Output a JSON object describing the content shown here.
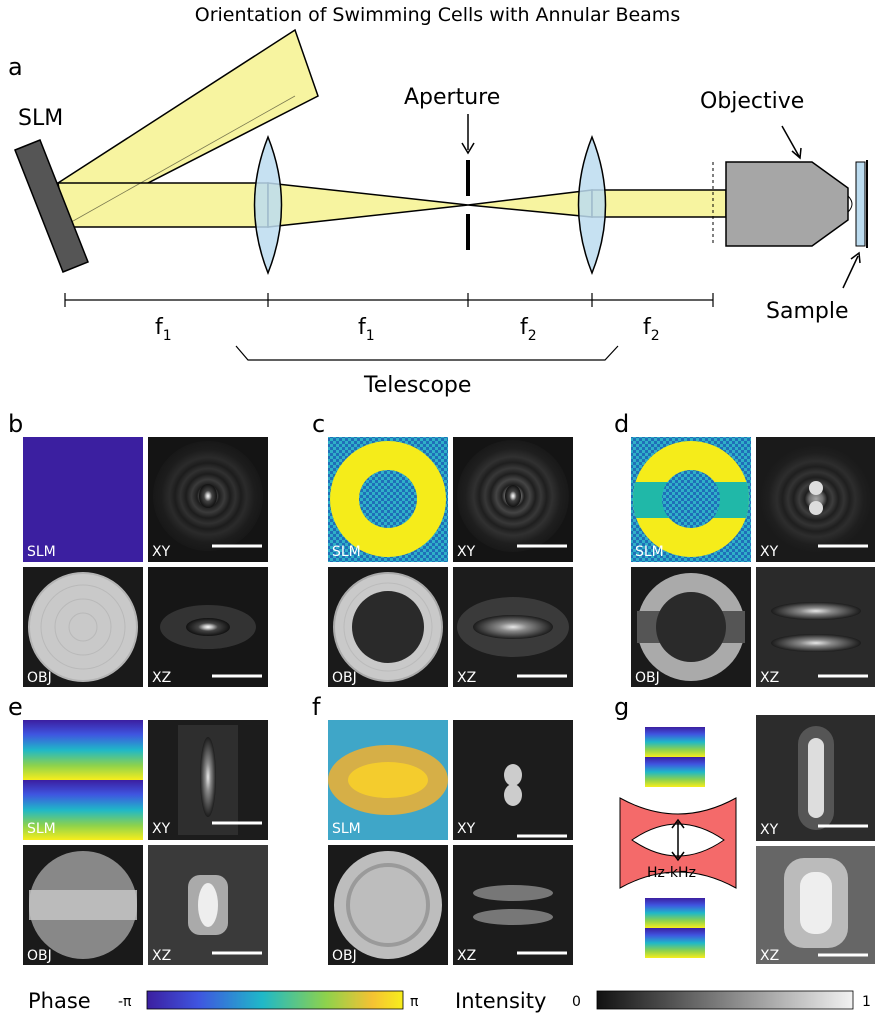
{
  "title": "Orientation of Swimming Cells with Annular Beams",
  "panel_a": {
    "letter": "a",
    "slm_label": "SLM",
    "aperture_label": "Aperture",
    "objective_label": "Objective",
    "sample_label": "Sample",
    "telescope_label": "Telescope",
    "focal_labels": [
      "f1",
      "f1",
      "f2",
      "f2"
    ]
  },
  "panels": [
    {
      "letter": "b",
      "slm": "SLM",
      "obj": "OBJ",
      "xy": "XY",
      "xz": "XZ"
    },
    {
      "letter": "c",
      "slm": "SLM",
      "obj": "OBJ",
      "xy": "XY",
      "xz": "XZ"
    },
    {
      "letter": "d",
      "slm": "SLM",
      "obj": "OBJ",
      "xy": "XY",
      "xz": "XZ"
    },
    {
      "letter": "e",
      "slm": "SLM",
      "obj": "OBJ",
      "xy": "XY",
      "xz": "XZ"
    },
    {
      "letter": "f",
      "slm": "SLM",
      "obj": "OBJ",
      "xy": "XY",
      "xz": "XZ"
    }
  ],
  "panel_g": {
    "letter": "g",
    "freq_label": "Hz-kHz",
    "xy": "XY",
    "xz": "XZ"
  },
  "colorbars": {
    "phase_label": "Phase",
    "phase_min": "-π",
    "phase_max": "π",
    "intensity_label": "Intensity",
    "intensity_min": "0",
    "intensity_max": "1"
  },
  "colors": {
    "beam": "#f7f4a0",
    "lens": "#bcdcf0",
    "objective": "#a6a6a6",
    "slm_phase_uniform": "#3b1fa0",
    "annulus": "#f5ec1a",
    "band": "#20b8a8",
    "trap": "#f46a6a"
  }
}
